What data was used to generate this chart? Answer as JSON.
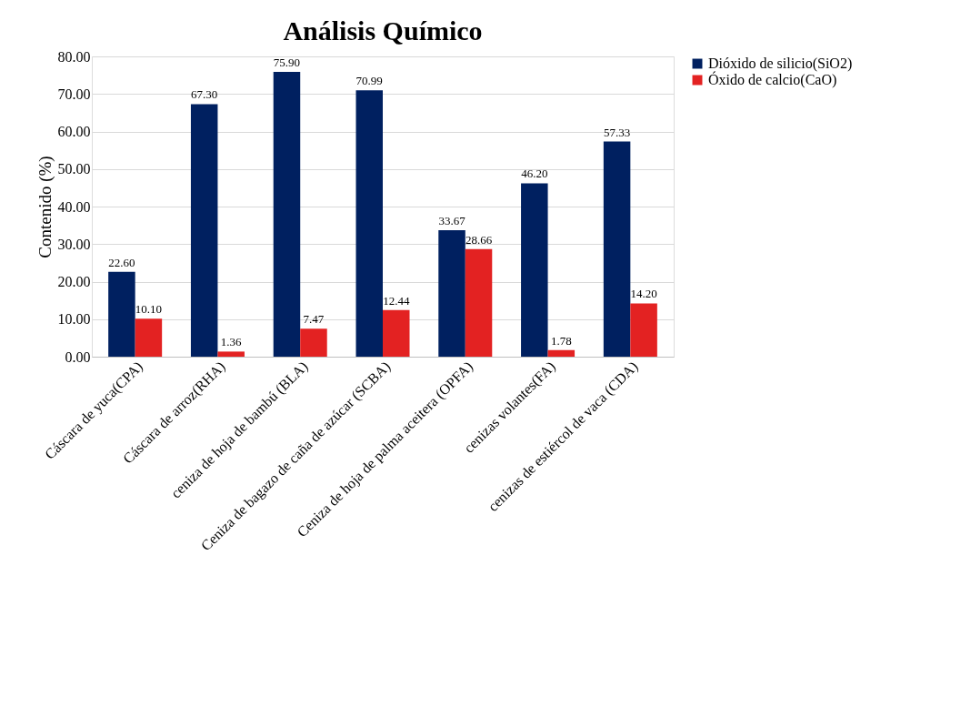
{
  "chart_data": {
    "type": "bar",
    "title": "Análisis Químico",
    "ylabel": "Contenido (%)",
    "categories": [
      "Cáscara de yuca(CPA)",
      "Cáscara de arroz(RHA)",
      "ceniza de hoja de bambú (BLA)",
      "Ceniza de bagazo de caña de azúcar (SCBA)",
      "Ceniza de hoja de palma aceitera (OPFA)",
      "cenizas volantes(FA)",
      "cenizas de estiércol de vaca (CDA)"
    ],
    "series": [
      {
        "name": "Dióxido de silicio(SiO2)",
        "color": "#002060",
        "values": [
          22.6,
          67.3,
          75.9,
          70.99,
          33.67,
          46.2,
          57.33
        ],
        "value_labels": [
          "22.60",
          "67.30",
          "75.90",
          "70.99",
          "33.67",
          "46.20",
          "57.33"
        ]
      },
      {
        "name": "Óxido de calcio(CaO)",
        "color": "#e32222",
        "values": [
          10.1,
          1.36,
          7.47,
          12.44,
          28.66,
          1.78,
          14.2
        ],
        "value_labels": [
          "10.10",
          "1.36",
          "7.47",
          "12.44",
          "28.66",
          "1.78",
          "14.20"
        ]
      }
    ],
    "ylim": [
      0,
      80
    ],
    "yticks": [
      {
        "value": 0,
        "label": "0.00"
      },
      {
        "value": 10,
        "label": "10.00"
      },
      {
        "value": 20,
        "label": "20.00"
      },
      {
        "value": 30,
        "label": "30.00"
      },
      {
        "value": 40,
        "label": "40.00"
      },
      {
        "value": 50,
        "label": "50.00"
      },
      {
        "value": 60,
        "label": "60.00"
      },
      {
        "value": 70,
        "label": "70.00"
      },
      {
        "value": 80,
        "label": "80.00"
      }
    ],
    "grid": "y",
    "legend": "right"
  }
}
